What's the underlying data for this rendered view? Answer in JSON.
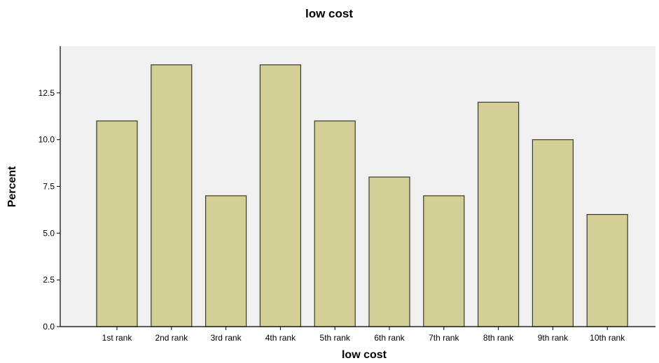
{
  "chart_data": {
    "type": "bar",
    "title": "low cost",
    "xlabel": "low cost",
    "ylabel": "Percent",
    "categories": [
      "1st rank",
      "2nd rank",
      "3rd rank",
      "4th rank",
      "5th rank",
      "6th rank",
      "7th rank",
      "8th rank",
      "9th rank",
      "10th rank"
    ],
    "values": [
      11,
      14,
      7,
      14,
      11,
      8,
      7,
      12,
      10,
      6
    ],
    "ylim": [
      0,
      15
    ],
    "yticks": [
      "0.0",
      "2.5",
      "5.0",
      "7.5",
      "10.0",
      "12.5"
    ],
    "grid": false,
    "legend": "none",
    "colors": {
      "bar_fill": "#d4cf96",
      "bar_stroke": "#3a3a2a",
      "plot_background": "#f0f0f0",
      "axis": "#000000"
    }
  }
}
